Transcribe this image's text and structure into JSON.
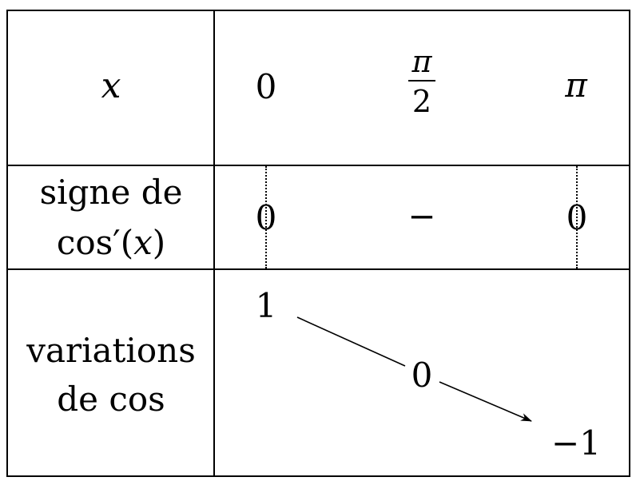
{
  "header_row": {
    "variable": "x",
    "values": {
      "start": "0",
      "middle_numerator": "π",
      "middle_denominator": "2",
      "end": "π"
    }
  },
  "sign_row": {
    "label_line1": "signe de",
    "label_line2_fn": "cos′(",
    "label_line2_var": "x",
    "label_line2_close": ")",
    "zero_start": "0",
    "sign": "−",
    "zero_end": "0"
  },
  "variation_row": {
    "label_line1": "variations",
    "label_line2": "de cos",
    "value_start": "1",
    "value_middle": "0",
    "value_end": "−1"
  },
  "colors": {
    "lines": "#000000",
    "background": "#ffffff"
  }
}
